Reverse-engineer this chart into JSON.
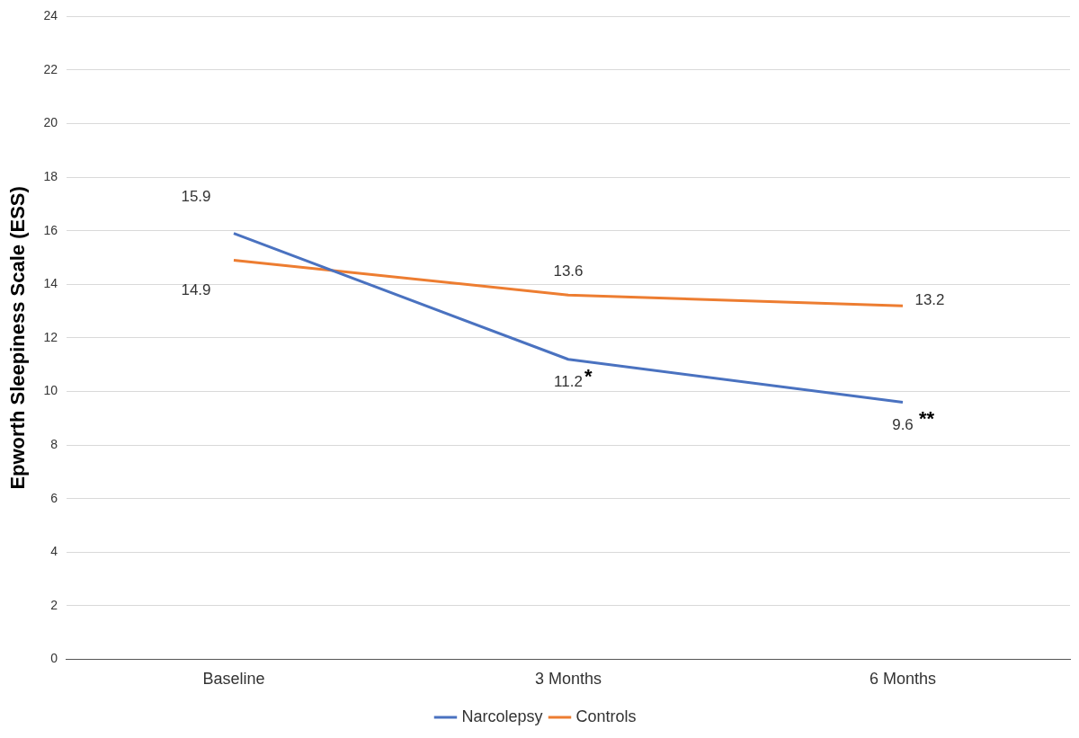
{
  "chart_data": {
    "type": "line",
    "ylabel": "Epworth Sleepiness Scale (ESS)",
    "categories": [
      "Baseline",
      "3 Months",
      "6 Months"
    ],
    "series": [
      {
        "name": "Narcolepsy",
        "color": "#4a72c0",
        "values": [
          15.9,
          11.2,
          9.6
        ]
      },
      {
        "name": "Controls",
        "color": "#ed7d31",
        "values": [
          14.9,
          13.6,
          13.2
        ]
      }
    ],
    "ylim": [
      0,
      24
    ],
    "yticks": [
      0,
      2,
      4,
      6,
      8,
      10,
      12,
      14,
      16,
      18,
      20,
      22,
      24
    ],
    "grid": "y",
    "legend": "bottom",
    "marker": "none",
    "line_style": "solid",
    "data_labels": true,
    "annotations": [
      {
        "text": "*",
        "x": "3 Months",
        "y": 11.2
      },
      {
        "text": "**",
        "x": "6 Months",
        "y": 9.6
      }
    ]
  }
}
